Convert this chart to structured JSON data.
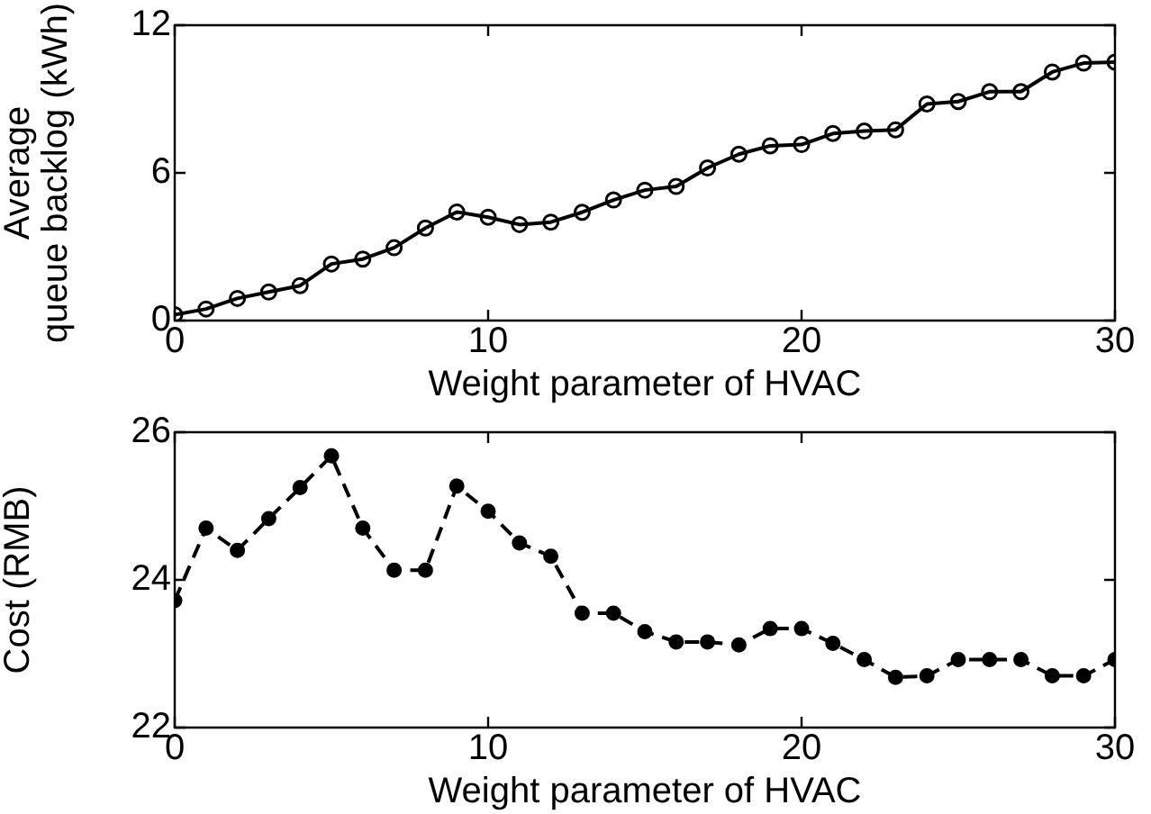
{
  "chart_data": [
    {
      "type": "line",
      "xlabel": "Weight parameter of HVAC",
      "ylabel": "Average queue backlog (kWh)",
      "x": [
        0,
        1,
        2,
        3,
        4,
        5,
        6,
        7,
        8,
        9,
        10,
        11,
        12,
        13,
        14,
        15,
        16,
        17,
        18,
        19,
        20,
        21,
        22,
        23,
        24,
        25,
        26,
        27,
        28,
        29,
        30
      ],
      "xlim": [
        0,
        30
      ],
      "xticks": [
        0,
        10,
        20,
        30
      ],
      "ylim": [
        0,
        12
      ],
      "yticks": [
        0,
        6,
        12
      ],
      "grid": false,
      "legend": false,
      "marker": "circle",
      "line_style": "solid",
      "series": [
        {
          "color": "#000000",
          "values": [
            0.24,
            0.47,
            0.9,
            1.16,
            1.42,
            2.3,
            2.5,
            2.96,
            3.76,
            4.41,
            4.2,
            3.9,
            4.0,
            4.4,
            4.9,
            5.3,
            5.45,
            6.2,
            6.76,
            7.1,
            7.15,
            7.6,
            7.7,
            7.75,
            8.8,
            8.9,
            9.3,
            9.3,
            10.1,
            10.46,
            10.5
          ]
        }
      ]
    },
    {
      "type": "line",
      "xlabel": "Weight parameter of HVAC",
      "ylabel": "Cost (RMB)",
      "x": [
        0,
        1,
        2,
        3,
        4,
        5,
        6,
        7,
        8,
        9,
        10,
        11,
        12,
        13,
        14,
        15,
        16,
        17,
        18,
        19,
        20,
        21,
        22,
        23,
        24,
        25,
        26,
        27,
        28,
        29,
        30
      ],
      "xlim": [
        0,
        30
      ],
      "xticks": [
        0,
        10,
        20,
        30
      ],
      "ylim": [
        22,
        26
      ],
      "yticks": [
        22,
        24,
        26
      ],
      "grid": false,
      "legend": false,
      "marker": "circle",
      "line_style": "dashed",
      "series": [
        {
          "color": "#000000",
          "values": [
            23.72,
            24.7,
            24.4,
            24.83,
            25.25,
            25.68,
            24.7,
            24.13,
            24.13,
            25.27,
            24.93,
            24.5,
            24.32,
            23.55,
            23.55,
            23.3,
            23.16,
            23.16,
            23.12,
            23.34,
            23.34,
            23.14,
            22.92,
            22.68,
            22.7,
            22.92,
            22.92,
            22.92,
            22.7,
            22.7,
            22.92
          ]
        }
      ]
    }
  ]
}
